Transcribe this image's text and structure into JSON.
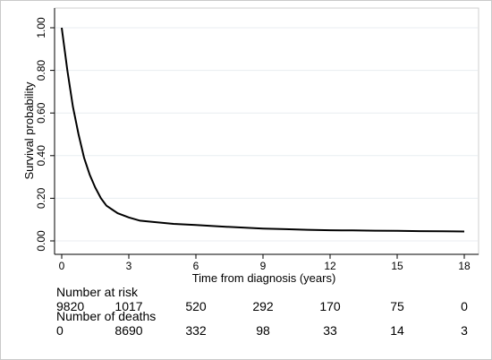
{
  "chart_data": {
    "type": "line",
    "title": "",
    "xlabel": "Time from diagnosis (years)",
    "ylabel": "Survival probability",
    "xlim": [
      0,
      18
    ],
    "ylim": [
      0,
      1
    ],
    "x_ticks": [
      "0",
      "3",
      "6",
      "9",
      "12",
      "15",
      "18"
    ],
    "y_ticks": [
      "0.00",
      "0.20",
      "0.40",
      "0.60",
      "0.80",
      "1.00"
    ],
    "grid": "horizontal",
    "legend": "none",
    "line_color": "#000000",
    "grid_color": "#e8edf1",
    "series": [
      {
        "x": [
          0,
          0.25,
          0.5,
          0.75,
          1,
          1.25,
          1.5,
          1.75,
          2,
          2.5,
          3,
          3.5,
          4,
          5,
          6,
          7,
          8,
          9,
          10,
          11,
          12,
          13,
          14,
          15,
          16,
          17,
          18
        ],
        "values": [
          1.0,
          0.8,
          0.63,
          0.5,
          0.39,
          0.31,
          0.25,
          0.2,
          0.165,
          0.13,
          0.11,
          0.095,
          0.09,
          0.08,
          0.075,
          0.068,
          0.063,
          0.058,
          0.055,
          0.052,
          0.05,
          0.049,
          0.048,
          0.047,
          0.046,
          0.045,
          0.044
        ]
      }
    ],
    "risk_table": {
      "at_risk_label": "Number at risk",
      "at_risk": [
        "9820",
        "1017",
        "520",
        "292",
        "170",
        "75",
        "0"
      ],
      "deaths_label": "Number of deaths",
      "deaths": [
        "0",
        "8690",
        "332",
        "98",
        "33",
        "14",
        "3"
      ]
    }
  }
}
